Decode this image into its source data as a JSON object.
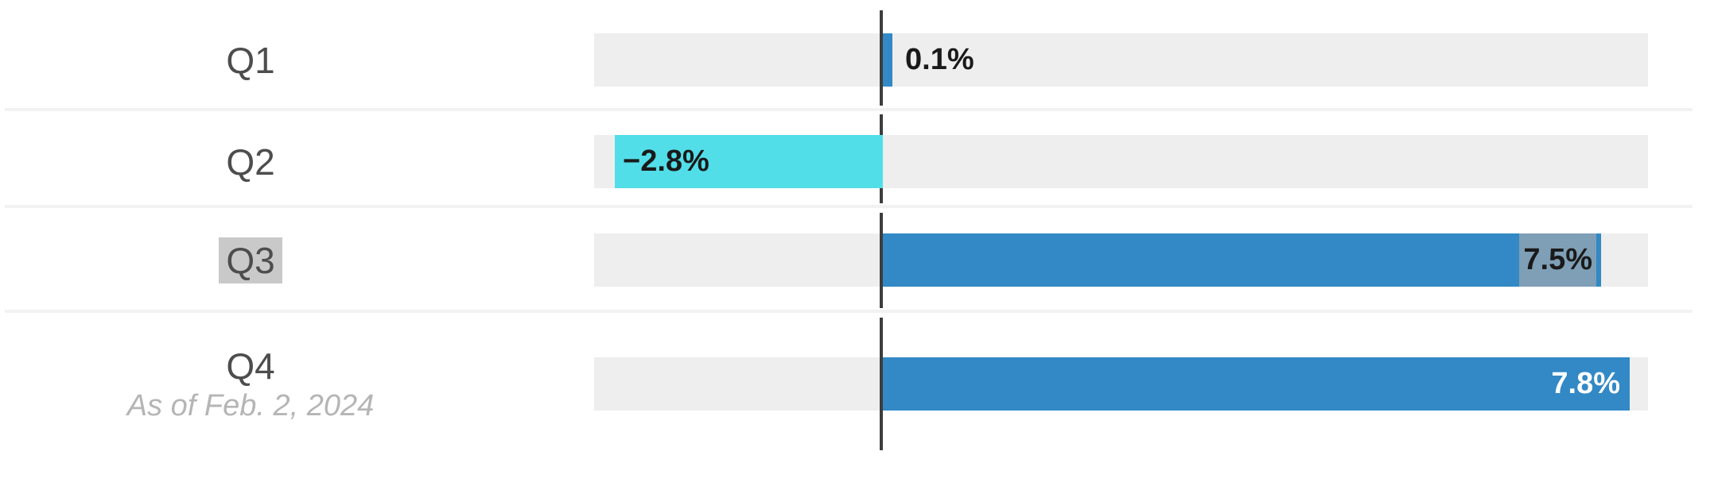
{
  "chart_data": {
    "type": "bar",
    "orientation": "horizontal",
    "categories": [
      "Q1",
      "Q2",
      "Q3",
      "Q4"
    ],
    "values": [
      0.1,
      -2.8,
      7.5,
      7.8
    ],
    "value_labels": [
      "0.1%",
      "−2.8%",
      "7.5%",
      "7.8%"
    ],
    "xlim": [
      -3,
      8
    ],
    "grid": false,
    "legend": false,
    "zero_baseline": true,
    "highlighted_category": "Q3",
    "caption": "As of Feb. 2, 2024",
    "colors": {
      "positive_bar": "#3289c5",
      "negative_bar": "#52dee8",
      "track": "#eeeeee",
      "zero_line": "#3d3d3d",
      "divider": "#f2f2f2",
      "label_text": "#4d4d4d",
      "value_text": "#1a1a1a",
      "value_text_inverse": "#ffffff",
      "caption_text": "#b5b5b5",
      "category_highlight": "#c9c9c9",
      "value_highlight_overlay": "rgba(173,173,173,0.62)"
    }
  },
  "rows": [
    {
      "label": "Q1",
      "value_label": "0.1%"
    },
    {
      "label": "Q2",
      "value_label": "−2.8%"
    },
    {
      "label": "Q3",
      "value_label": "7.5%"
    },
    {
      "label": "Q4",
      "value_label": "7.8%",
      "caption": "As of Feb. 2, 2024"
    }
  ]
}
